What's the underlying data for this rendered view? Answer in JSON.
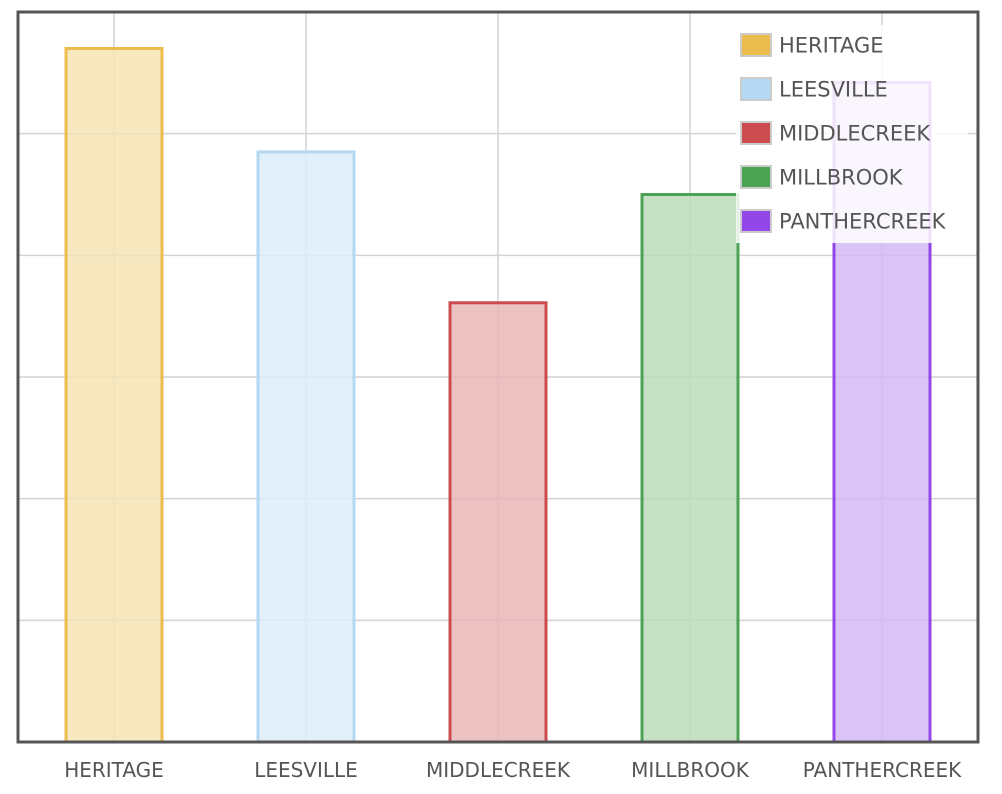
{
  "chart_data": {
    "type": "bar",
    "title": "",
    "xlabel": "",
    "ylabel": "",
    "categories": [
      "HERITAGE",
      "LEESVILLE",
      "MIDDLECREEK",
      "MILLBROOK",
      "PANTHERCREEK"
    ],
    "values": [
      5.7,
      4.85,
      3.61,
      4.5,
      5.42
    ],
    "ylim": [
      0,
      6
    ],
    "grid": true,
    "legend": "top-right",
    "colors": {
      "HERITAGE": {
        "stroke": "#ebbd4f",
        "fill": "#f6e4b5"
      },
      "LEESVILLE": {
        "stroke": "#b4d8f2",
        "fill": "#ddedf9"
      },
      "MIDDLECREEK": {
        "stroke": "#cc4b4f",
        "fill": "#e8b6b7"
      },
      "MILLBROOK": {
        "stroke": "#4da354",
        "fill": "#bcdcbc"
      },
      "PANTHERCREEK": {
        "stroke": "#9247e8",
        "fill": "#d3b9f5"
      }
    }
  }
}
